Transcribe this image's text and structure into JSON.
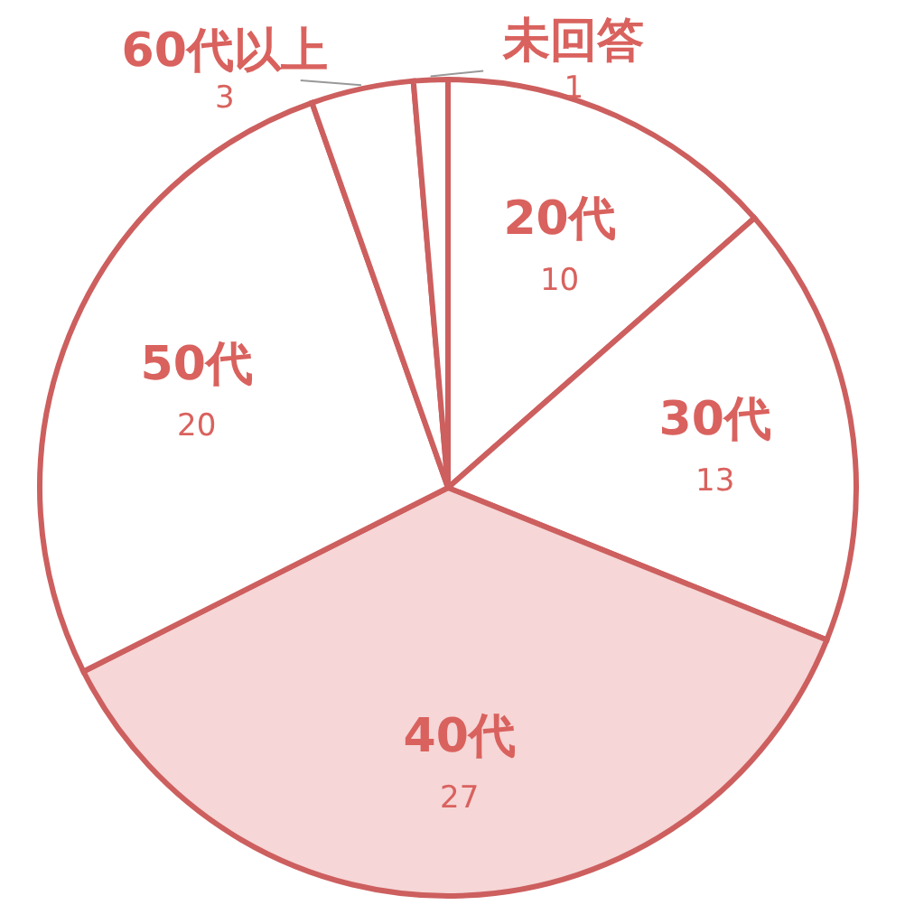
{
  "chart_data": {
    "type": "pie",
    "categories": [
      "20代",
      "30代",
      "40代",
      "50代",
      "60代以上",
      "未回答"
    ],
    "values": [
      10,
      13,
      27,
      20,
      3,
      1
    ],
    "colors": [
      "#ffffff",
      "#ffffff",
      "#f6d6d6",
      "#ffffff",
      "#ffffff",
      "#ffffff"
    ],
    "data_labels": true
  }
}
